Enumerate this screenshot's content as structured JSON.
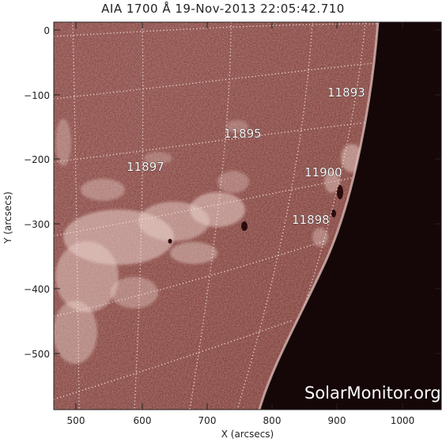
{
  "title": "AIA 1700 Å 19-Nov-2013 22:05:42.710",
  "xaxis": {
    "label": "X (arcsecs)",
    "ticks": [
      "500",
      "600",
      "700",
      "800",
      "900",
      "1000"
    ]
  },
  "yaxis": {
    "label": "Y (arcsecs)",
    "ticks": [
      "0",
      "−100",
      "−200",
      "−300",
      "−400",
      "−500"
    ]
  },
  "active_regions": [
    "11893",
    "11895",
    "11897",
    "11900",
    "11898"
  ],
  "watermark": "SolarMonitor.org",
  "colors": {
    "disk": "#8a4b46",
    "space": "#120405",
    "plage": "#e8cfc9",
    "grid": "#f0dcd8"
  }
}
